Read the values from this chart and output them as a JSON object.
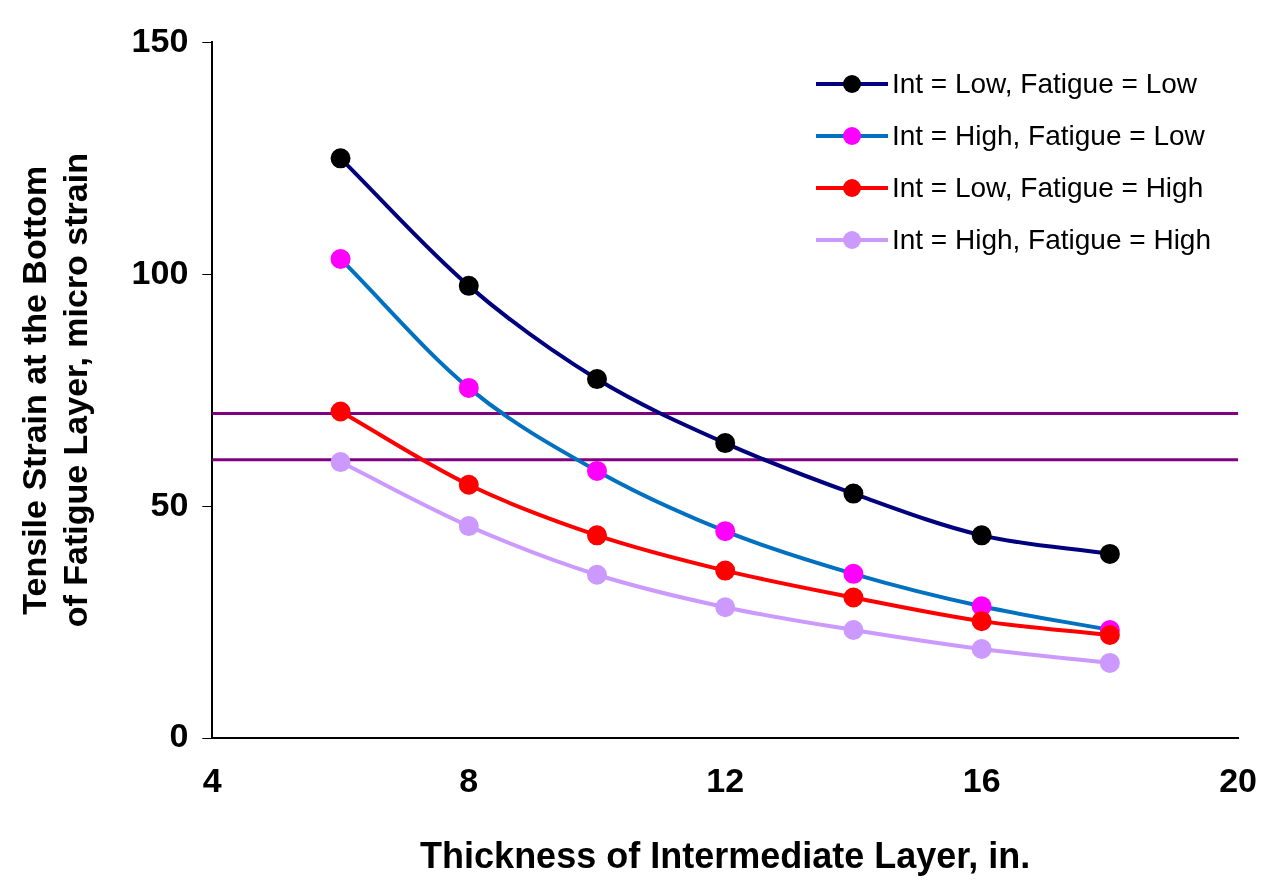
{
  "chart_data": {
    "type": "line",
    "xlabel": "Thickness of Intermediate Layer, in.",
    "ylabel": "Tensile Strain at the Bottom of Fatigue Layer, micro strain",
    "x": [
      6,
      8,
      10,
      12,
      14,
      16,
      18
    ],
    "series": [
      {
        "name": "Int = Low, Fatigue = Low",
        "color": "#00007f",
        "colors": [
          "#000000",
          "#000000",
          "#000000",
          "#000000",
          "#000000",
          "#000000",
          "#000000"
        ],
        "values": [
          125,
          97.5,
          77.4,
          63.6,
          52.7,
          43.7,
          39.7
        ]
      },
      {
        "name": "Int = High, Fatigue = Low",
        "color": "#0070c0",
        "colors": [
          "#ff00ff",
          "#ff00ff",
          "#ff00ff",
          "#ff00ff",
          "#ff00ff",
          "#ff00ff",
          "#ff00ff"
        ],
        "values": [
          103.3,
          75.5,
          57.6,
          44.6,
          35.4,
          28.4,
          23.3
        ]
      },
      {
        "name": "Int = Low, Fatigue = High",
        "color": "#ff0000",
        "colors": [
          "#ff0000",
          "#ff0000",
          "#ff0000",
          "#ff0000",
          "#ff0000",
          "#ff0000",
          "#ff0000"
        ],
        "values": [
          70.4,
          54.6,
          43.7,
          36.1,
          30.3,
          25.2,
          22.2
        ]
      },
      {
        "name": "Int = High, Fatigue = High",
        "color": "#cc99ff",
        "colors": [
          "#cc99ff",
          "#cc99ff",
          "#cc99ff",
          "#cc99ff",
          "#cc99ff",
          "#cc99ff",
          "#cc99ff"
        ],
        "values": [
          59.5,
          45.7,
          35.2,
          28.2,
          23.3,
          19.2,
          16.2
        ]
      }
    ],
    "xlim": [
      4,
      20
    ],
    "xticks": [
      4,
      8,
      12,
      16,
      20
    ],
    "ylim": [
      0,
      150
    ],
    "yticks": [
      0,
      50,
      100,
      150
    ],
    "ref_lines": [
      {
        "axis": "y",
        "value": 70,
        "color": "#800080"
      },
      {
        "axis": "y",
        "value": 60,
        "color": "#800080"
      }
    ],
    "grid": false,
    "legend": "top right",
    "marker": "circle",
    "line_style": "solid"
  }
}
